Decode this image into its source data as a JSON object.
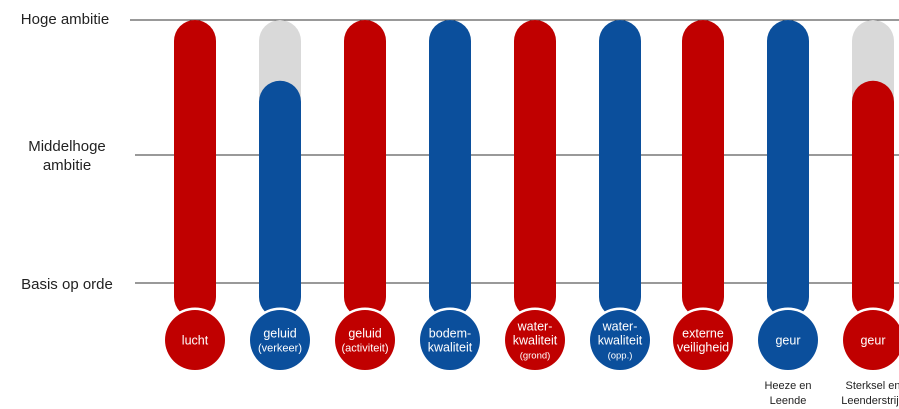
{
  "chart_data": {
    "type": "bar",
    "levels": [
      "Basis op orde",
      "Middelhoge ambitie",
      "Hoge ambitie"
    ],
    "level_labels": {
      "high": "Hoge ambitie",
      "mid_line1": "Middelhoge",
      "mid_line2": "ambitie",
      "base": "Basis op orde"
    },
    "categories": [
      {
        "line1": "lucht",
        "line2": "",
        "line3": "",
        "note1": "",
        "note2": ""
      },
      {
        "line1": "geluid",
        "line2": "(verkeer)",
        "line3": "",
        "note1": "",
        "note2": ""
      },
      {
        "line1": "geluid",
        "line2": "(activiteit)",
        "line3": "",
        "note1": "",
        "note2": ""
      },
      {
        "line1": "bodem-",
        "line2": "kwaliteit",
        "line3": "",
        "note1": "",
        "note2": ""
      },
      {
        "line1": "water-",
        "line2": "kwaliteit",
        "line3": "(grond)",
        "note1": "",
        "note2": ""
      },
      {
        "line1": "water-",
        "line2": "kwaliteit",
        "line3": "(opp.)",
        "note1": "",
        "note2": ""
      },
      {
        "line1": "externe",
        "line2": "veiligheid",
        "line3": "",
        "note1": "",
        "note2": ""
      },
      {
        "line1": "geur",
        "line2": "",
        "line3": "",
        "note1": "Heeze en",
        "note2": "Leende"
      },
      {
        "line1": "geur",
        "line2": "",
        "line3": "",
        "note1": "Sterksel en",
        "note2": "Leenderstrijp"
      }
    ],
    "values": [
      2,
      1.55,
      2,
      2,
      2,
      2,
      2,
      2,
      1.55
    ],
    "colors": [
      "red",
      "blue",
      "red",
      "blue",
      "red",
      "blue",
      "red",
      "blue",
      "red"
    ],
    "ylim": [
      0,
      2
    ],
    "grid": true
  },
  "palette": {
    "red": "#c00000",
    "blue": "#0b4f9c",
    "track": "#d9d9d9",
    "line": "#333333",
    "label_text": "#ffffff"
  }
}
